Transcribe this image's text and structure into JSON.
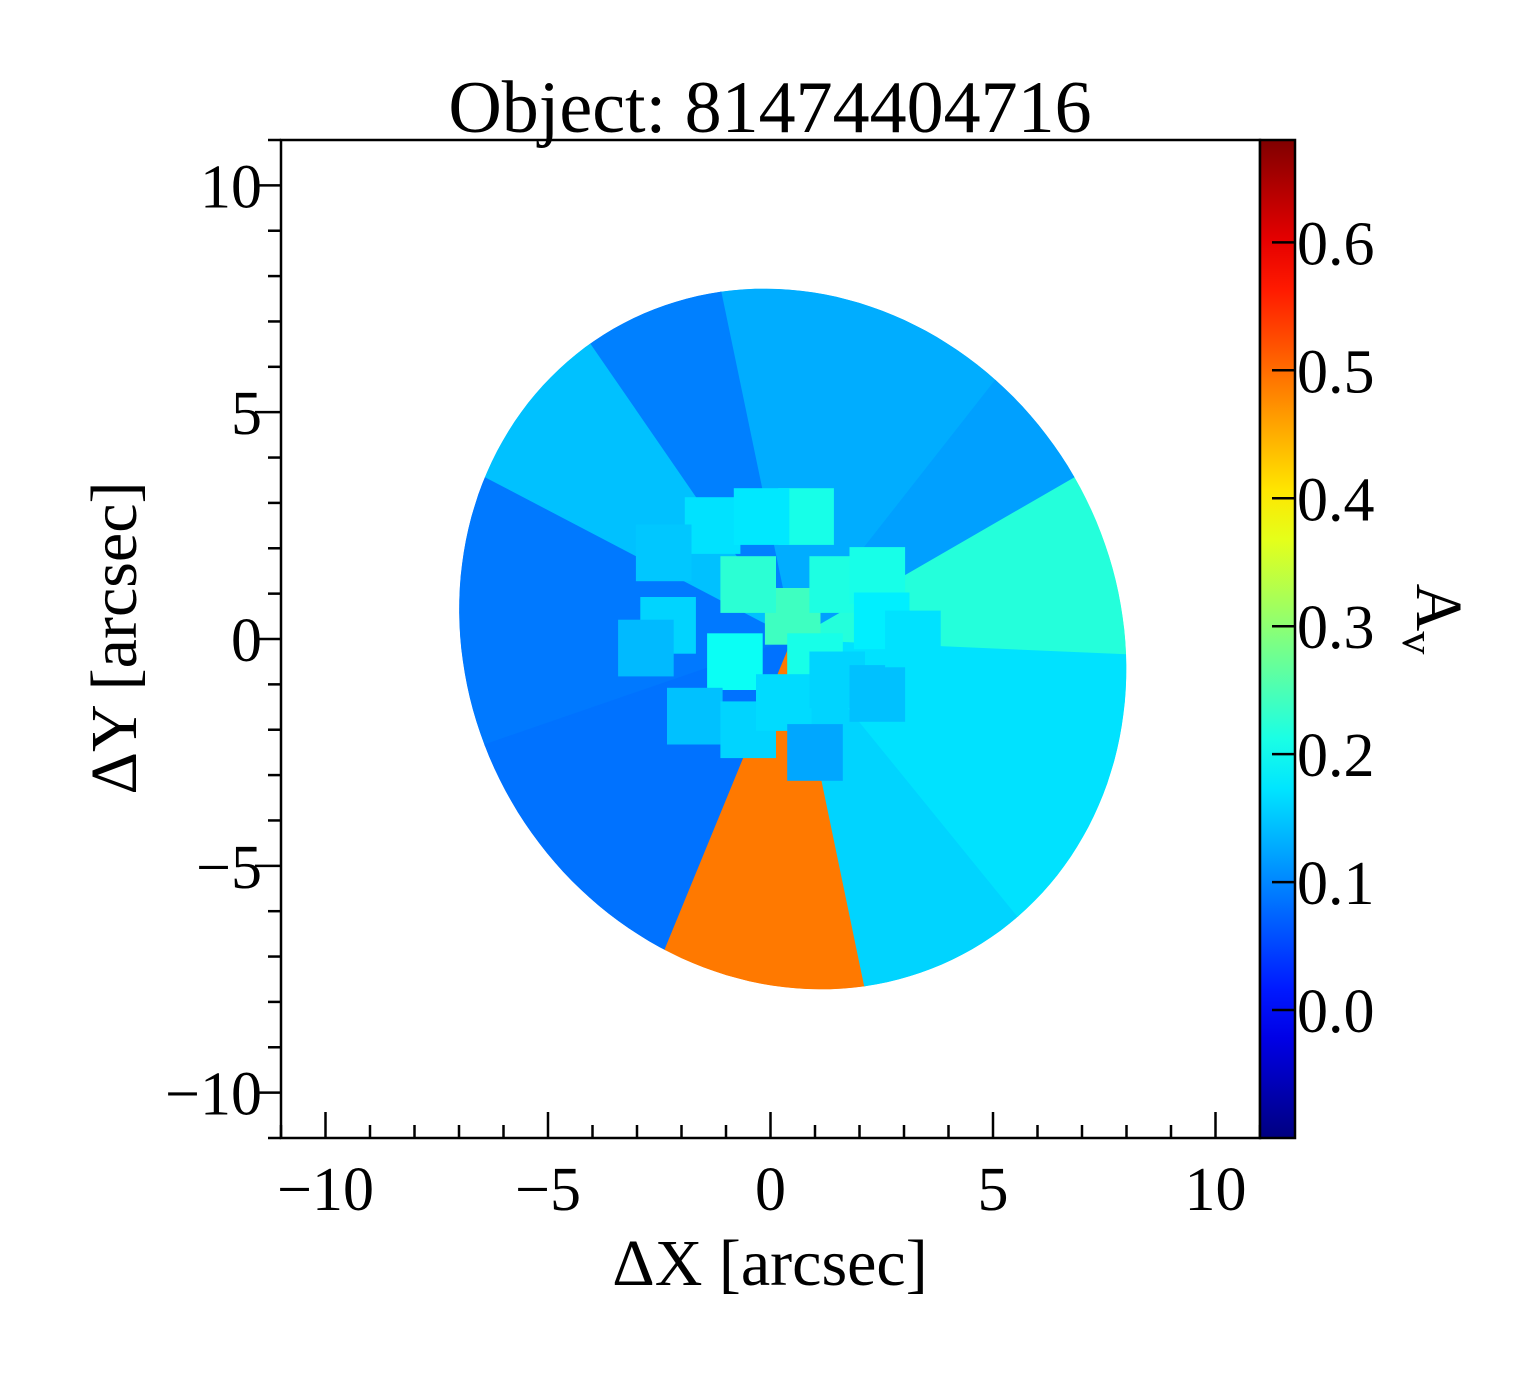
{
  "chart_data": {
    "type": "heatmap",
    "title": "Object: 81474404716",
    "xlabel": "ΔX [arcsec]",
    "ylabel": "ΔY [arcsec]",
    "xlim": [
      -11,
      11
    ],
    "ylim": [
      -11,
      11
    ],
    "xticks": [
      -10,
      -5,
      0,
      5,
      10
    ],
    "xtick_labels": [
      "−10",
      "−5",
      "0",
      "5",
      "10"
    ],
    "yticks": [
      -10,
      -5,
      0,
      5,
      10
    ],
    "ytick_labels": [
      "−10",
      "−5",
      "0",
      "5",
      "10"
    ],
    "colorbar": {
      "label": "A",
      "label_subscript": "v",
      "range": [
        -0.1,
        0.68
      ],
      "colormap": "jet",
      "ticks": [
        0.0,
        0.1,
        0.2,
        0.3,
        0.4,
        0.5,
        0.6
      ],
      "tick_labels": [
        "0.0",
        "0.1",
        "0.2",
        "0.3",
        "0.4",
        "0.5",
        "0.6"
      ]
    },
    "map": {
      "center": [
        0.5,
        0.0
      ],
      "semi_axes": [
        7.3,
        7.9
      ],
      "rotation_deg": -30,
      "outer_sectors": [
        {
          "angle_range_deg": [
            20,
            70
          ],
          "value": 0.13
        },
        {
          "angle_range_deg": [
            70,
            95
          ],
          "value": 0.095
        },
        {
          "angle_range_deg": [
            95,
            125
          ],
          "value": 0.145
        },
        {
          "angle_range_deg": [
            125,
            170
          ],
          "value": 0.09
        },
        {
          "angle_range_deg": [
            170,
            215
          ],
          "value": 0.085
        },
        {
          "angle_range_deg": [
            215,
            250
          ],
          "value": 0.49
        },
        {
          "angle_range_deg": [
            250,
            280
          ],
          "value": 0.16
        },
        {
          "angle_range_deg": [
            280,
            330
          ],
          "value": 0.17
        },
        {
          "angle_range_deg": [
            330,
            360
          ],
          "value": 0.22
        },
        {
          "angle_range_deg": [
            0,
            20
          ],
          "value": 0.12
        }
      ],
      "inner_bins": [
        {
          "x": 0.5,
          "y": 0.5,
          "value": 0.24
        },
        {
          "x": -0.5,
          "y": 1.2,
          "value": 0.225
        },
        {
          "x": 1.5,
          "y": 1.2,
          "value": 0.215
        },
        {
          "x": 1.0,
          "y": -0.5,
          "value": 0.21
        },
        {
          "x": -0.8,
          "y": -0.5,
          "value": 0.2
        },
        {
          "x": 2.4,
          "y": 1.4,
          "value": 0.21
        },
        {
          "x": 0.8,
          "y": 2.7,
          "value": 0.21
        },
        {
          "x": -1.3,
          "y": 2.5,
          "value": 0.17
        },
        {
          "x": -0.2,
          "y": 2.7,
          "value": 0.175
        },
        {
          "x": -2.4,
          "y": 1.9,
          "value": 0.15
        },
        {
          "x": -2.3,
          "y": 0.3,
          "value": 0.16
        },
        {
          "x": -2.8,
          "y": -0.2,
          "value": 0.14
        },
        {
          "x": -1.7,
          "y": -1.7,
          "value": 0.145
        },
        {
          "x": -0.5,
          "y": -2.0,
          "value": 0.16
        },
        {
          "x": 0.3,
          "y": -1.4,
          "value": 0.165
        },
        {
          "x": 1.5,
          "y": -0.9,
          "value": 0.16
        },
        {
          "x": 2.4,
          "y": -1.2,
          "value": 0.145
        },
        {
          "x": 1.0,
          "y": -2.5,
          "value": 0.125
        },
        {
          "x": 2.5,
          "y": 0.4,
          "value": 0.18
        },
        {
          "x": 3.2,
          "y": 0.0,
          "value": 0.17
        }
      ]
    }
  }
}
